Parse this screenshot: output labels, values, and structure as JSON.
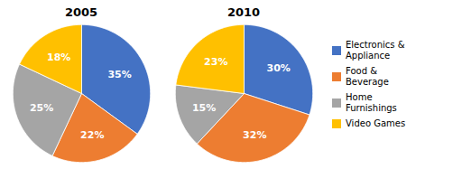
{
  "chart_data": [
    {
      "type": "pie",
      "title": "2005",
      "categories": [
        "Electronics &\nAppliance",
        "Food &\nBeverage",
        "Home\nFurnishings",
        "Video Games"
      ],
      "values": [
        35,
        22,
        25,
        18
      ],
      "value_labels": [
        "35%",
        "22%",
        "25%",
        "18%"
      ],
      "colors": [
        "#4472C4",
        "#ED7D31",
        "#A5A5A5",
        "#FFC000"
      ],
      "data_labels": true,
      "legend": "right"
    },
    {
      "type": "pie",
      "title": "2010",
      "categories": [
        "Electronics &\nAppliance",
        "Food &\nBeverage",
        "Home\nFurnishings",
        "Video Games"
      ],
      "values": [
        30,
        32,
        15,
        23
      ],
      "value_labels": [
        "30%",
        "32%",
        "15%",
        "23%"
      ],
      "colors": [
        "#4472C4",
        "#ED7D31",
        "#A5A5A5",
        "#FFC000"
      ],
      "data_labels": true,
      "legend": "right"
    }
  ]
}
